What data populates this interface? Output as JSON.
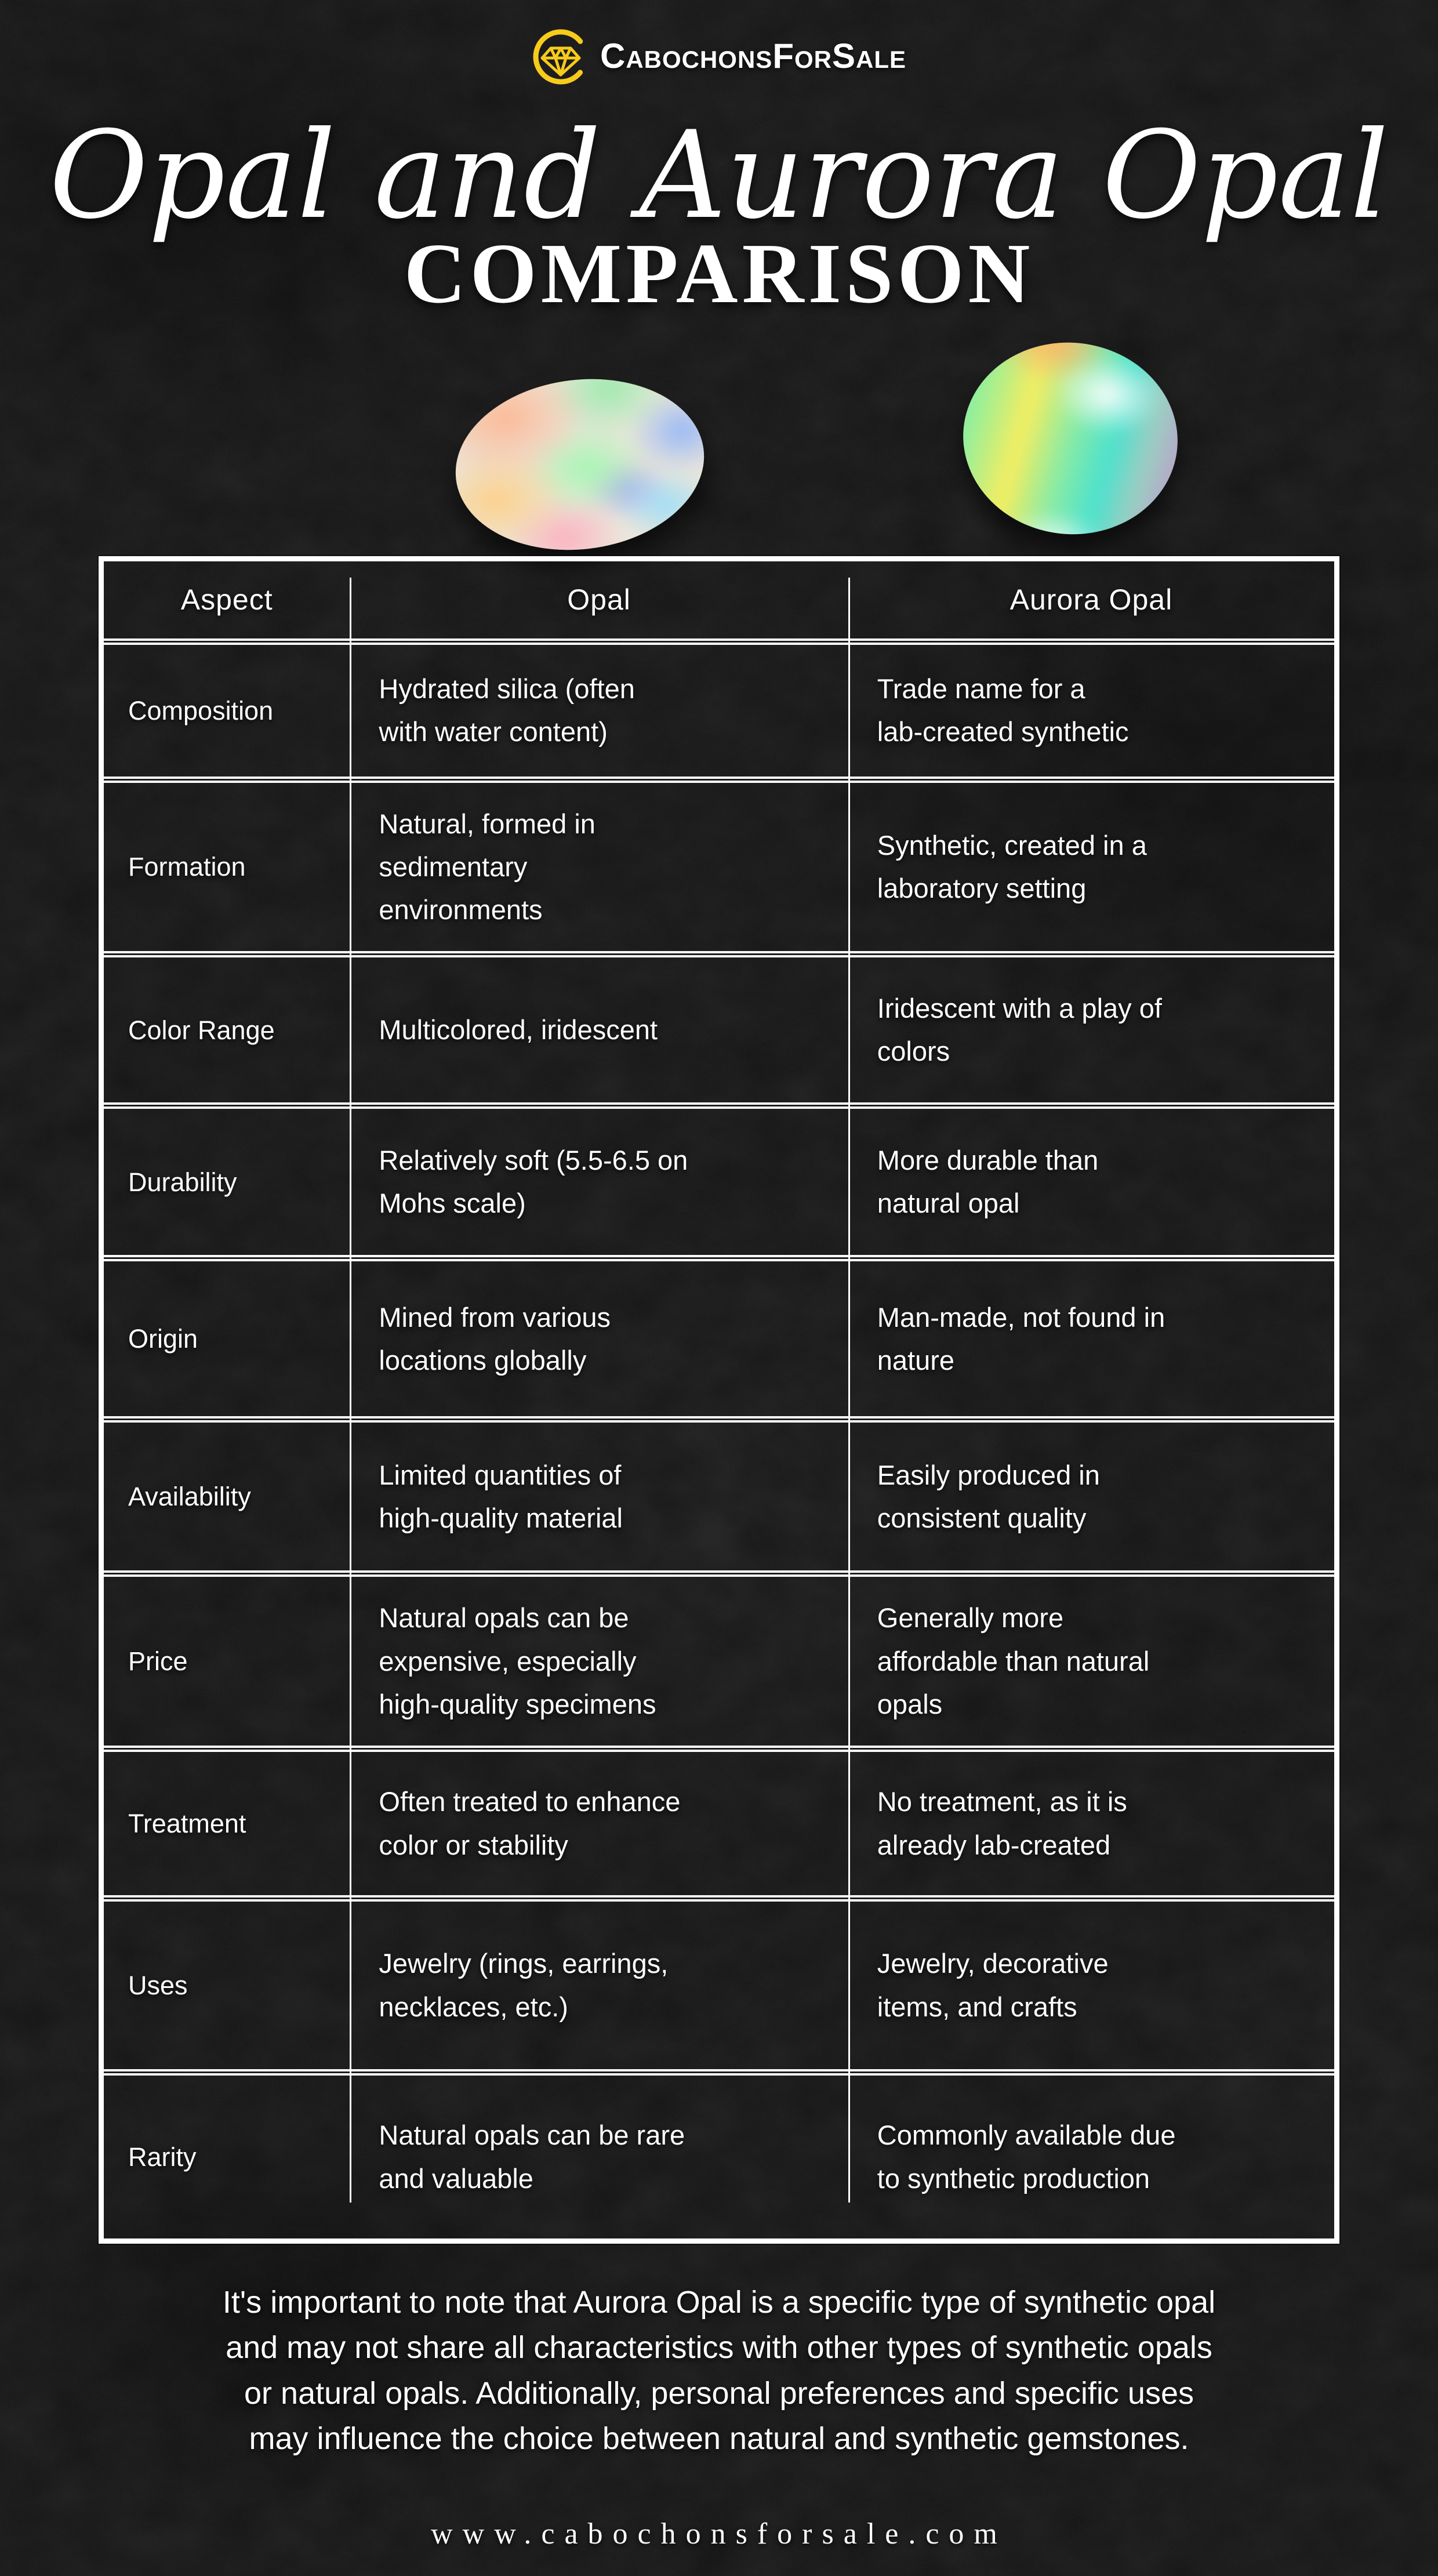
{
  "brand": {
    "name": "CabochonsForSale",
    "accent_yellow": "#F6CB1B"
  },
  "icons": {
    "logo": "gem-in-c-ring-icon"
  },
  "header": {
    "title_script": "Opal and Aurora Opal",
    "title_caps": "COMPARISON"
  },
  "table": {
    "columns": [
      "Aspect",
      "Opal",
      "Aurora Opal"
    ],
    "rows": [
      {
        "aspect": "Composition",
        "opal": "Hydrated silica (often\nwith water content)",
        "aurora": "Trade name for a\nlab-created synthetic"
      },
      {
        "aspect": "Formation",
        "opal": "Natural, formed in\nsedimentary\nenvironments",
        "aurora": "Synthetic, created in a\nlaboratory setting"
      },
      {
        "aspect": "Color Range",
        "opal": "Multicolored, iridescent",
        "aurora": "Iridescent with a play of\ncolors"
      },
      {
        "aspect": "Durability",
        "opal": "Relatively soft (5.5-6.5 on\nMohs scale)",
        "aurora": "More durable than\nnatural opal"
      },
      {
        "aspect": "Origin",
        "opal": "Mined from various\nlocations globally",
        "aurora": "Man-made, not found in\nnature"
      },
      {
        "aspect": "Availability",
        "opal": "Limited quantities of\nhigh-quality material",
        "aurora": "Easily produced in\nconsistent quality"
      },
      {
        "aspect": "Price",
        "opal": "Natural opals can be\nexpensive, especially\nhigh-quality specimens",
        "aurora": "Generally more\naffordable than natural\nopals"
      },
      {
        "aspect": "Treatment",
        "opal": "Often treated to enhance\ncolor or stability",
        "aurora": "No treatment, as it is\nalready lab-created"
      },
      {
        "aspect": "Uses",
        "opal": "Jewelry (rings, earrings,\nnecklaces, etc.)",
        "aurora": "Jewelry, decorative\nitems, and crafts"
      },
      {
        "aspect": "Rarity",
        "opal": "Natural opals can be rare\nand valuable",
        "aurora": "Commonly available due\nto synthetic production"
      }
    ]
  },
  "footer": {
    "note": "It's important to note that Aurora Opal is a specific type of synthetic opal\nand may not share all characteristics with other types of synthetic opals\nor natural opals. Additionally, personal preferences and specific uses\nmay influence the choice between natural and synthetic gemstones.",
    "website": "www.cabochonsforsale.com"
  },
  "colors": {
    "background": "#1e1e1e",
    "text": "#FFFFFF",
    "accent": "#F6CB1B"
  }
}
